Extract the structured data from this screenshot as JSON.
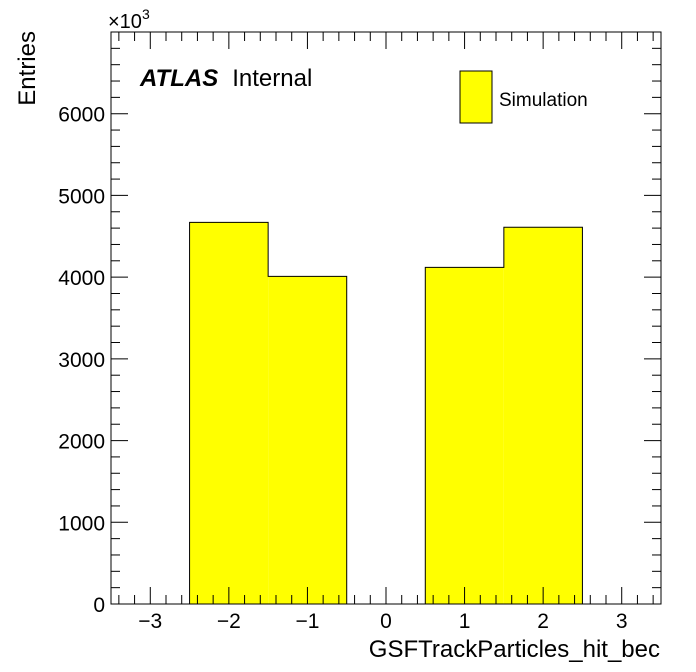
{
  "chart_data": {
    "type": "bar",
    "histogram": true,
    "bins": [
      {
        "low": -2.5,
        "high": -1.5,
        "value": 4670000
      },
      {
        "low": -1.5,
        "high": -0.5,
        "value": 4010000
      },
      {
        "low": -0.5,
        "high": 0.5,
        "value": 0
      },
      {
        "low": 0.5,
        "high": 1.5,
        "value": 4120000
      },
      {
        "low": 1.5,
        "high": 2.5,
        "value": 4610000
      }
    ],
    "xlabel": "GSFTrackParticles_hit_bec",
    "ylabel": "Entries",
    "y_multiplier": "×10",
    "y_multiplier_exponent": "3",
    "xlim": [
      -3.5,
      3.5
    ],
    "ylim": [
      0,
      7000000
    ],
    "xticks": [
      {
        "value": -3,
        "label": "−3"
      },
      {
        "value": -2,
        "label": "−2"
      },
      {
        "value": -1,
        "label": "−1"
      },
      {
        "value": 0,
        "label": "0"
      },
      {
        "value": 1,
        "label": "1"
      },
      {
        "value": 2,
        "label": "2"
      },
      {
        "value": 3,
        "label": "3"
      }
    ],
    "yticks": [
      {
        "value": 0,
        "label": "0"
      },
      {
        "value": 1000000,
        "label": "1000"
      },
      {
        "value": 2000000,
        "label": "2000"
      },
      {
        "value": 3000000,
        "label": "3000"
      },
      {
        "value": 4000000,
        "label": "4000"
      },
      {
        "value": 5000000,
        "label": "5000"
      },
      {
        "value": 6000000,
        "label": "6000"
      }
    ],
    "legend": [
      {
        "name": "Simulation",
        "color": "#ffff00"
      }
    ],
    "legend_position": "top-right",
    "annotation_bold": "ATLAS",
    "annotation_text": "Internal",
    "fill_color": "#ffff00",
    "edge_color": "#000000",
    "grid": false
  }
}
